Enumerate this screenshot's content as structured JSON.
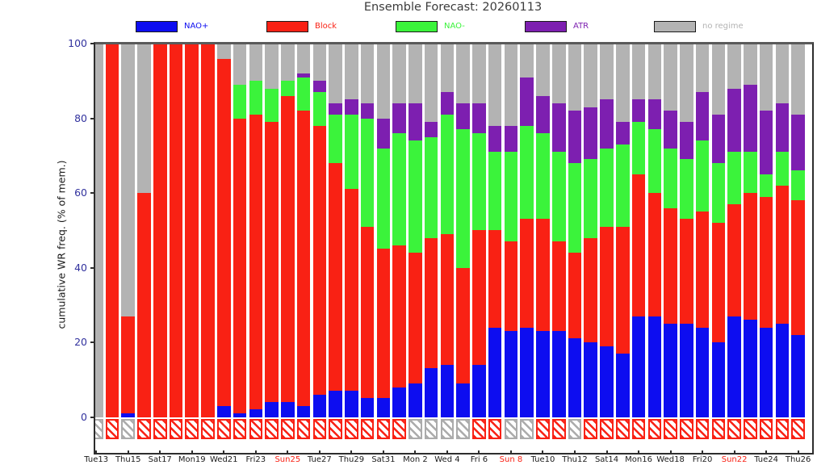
{
  "title": "Ensemble Forecast: 20260113",
  "legend": {
    "items": [
      {
        "label": "NAO+",
        "color": "#0d0df0"
      },
      {
        "label": "Block",
        "color": "#f92114"
      },
      {
        "label": "NAO-",
        "color": "#3bf33b"
      },
      {
        "label": "ATR",
        "color": "#7d1fb0"
      },
      {
        "label": "no regime",
        "color": "#b3b3b3"
      }
    ]
  },
  "y_axis": {
    "label": "cumulative WR freq. (% of mem.)",
    "ticks": [
      100,
      80,
      60,
      40,
      20,
      0
    ],
    "tick_color": "#32329e"
  },
  "x_axis": {
    "sunday_color": "#f92114",
    "tick_labels": [
      {
        "text": "Tue13",
        "sunday": false
      },
      {
        "text": "Thu15",
        "sunday": false
      },
      {
        "text": "Sat17",
        "sunday": false
      },
      {
        "text": "Mon19",
        "sunday": false
      },
      {
        "text": "Wed21",
        "sunday": false
      },
      {
        "text": "Fri23",
        "sunday": false
      },
      {
        "text": "Sun25",
        "sunday": true
      },
      {
        "text": "Tue27",
        "sunday": false
      },
      {
        "text": "Thu29",
        "sunday": false
      },
      {
        "text": "Sat31",
        "sunday": false
      },
      {
        "text": "Mon 2",
        "sunday": false
      },
      {
        "text": "Wed 4",
        "sunday": false
      },
      {
        "text": "Fri 6",
        "sunday": false
      },
      {
        "text": "Sun 8",
        "sunday": true
      },
      {
        "text": "Tue10",
        "sunday": false
      },
      {
        "text": "Thu12",
        "sunday": false
      },
      {
        "text": "Sat14",
        "sunday": false
      },
      {
        "text": "Mon16",
        "sunday": false
      },
      {
        "text": "Wed18",
        "sunday": false
      },
      {
        "text": "Fri20",
        "sunday": false
      },
      {
        "text": "Sun22",
        "sunday": true
      },
      {
        "text": "Tue24",
        "sunday": false
      },
      {
        "text": "Thu26",
        "sunday": false
      }
    ]
  },
  "chart_data": {
    "type": "bar",
    "stacked": true,
    "title": "Ensemble Forecast: 20260113",
    "ylabel": "cumulative WR freq. (% of mem.)",
    "ylim": [
      0,
      100
    ],
    "grid": false,
    "legend_position": "top",
    "categories": [
      "Tue13",
      "Wed14",
      "Thu15",
      "Fri16",
      "Sat17",
      "Sun18",
      "Mon19",
      "Tue20",
      "Wed21",
      "Thu22",
      "Fri23",
      "Sat24",
      "Sun25",
      "Mon26",
      "Tue27",
      "Wed28",
      "Thu29",
      "Fri30",
      "Sat31",
      "Sun 1",
      "Mon 2",
      "Tue 3",
      "Wed 4",
      "Thu 5",
      "Fri 6",
      "Sat 7",
      "Sun 8",
      "Mon 9",
      "Tue10",
      "Wed11",
      "Thu12",
      "Fri13",
      "Sat14",
      "Sun15",
      "Mon16",
      "Tue17",
      "Wed18",
      "Thu19",
      "Fri20",
      "Sat21",
      "Sun22",
      "Mon23",
      "Tue24",
      "Wed25",
      "Thu26"
    ],
    "series": [
      {
        "name": "NAO+",
        "color": "#0d0df0",
        "values": [
          0,
          0,
          1,
          0,
          0,
          0,
          0,
          0,
          3,
          1,
          2,
          4,
          4,
          3,
          6,
          7,
          7,
          5,
          5,
          8,
          9,
          13,
          14,
          9,
          14,
          24,
          23,
          24,
          23,
          23,
          21,
          20,
          19,
          17,
          27,
          27,
          25,
          25,
          24,
          20,
          27,
          26,
          24,
          25,
          22
        ]
      },
      {
        "name": "Block",
        "color": "#f92114",
        "values": [
          0,
          100,
          26,
          60,
          100,
          100,
          100,
          100,
          93,
          79,
          79,
          75,
          82,
          79,
          72,
          61,
          54,
          46,
          40,
          38,
          35,
          35,
          35,
          31,
          36,
          26,
          24,
          29,
          30,
          24,
          23,
          28,
          32,
          34,
          38,
          33,
          31,
          28,
          31,
          32,
          30,
          34,
          35,
          37,
          36
        ]
      },
      {
        "name": "NAO-",
        "color": "#3bf33b",
        "values": [
          0,
          0,
          0,
          0,
          0,
          0,
          0,
          0,
          0,
          9,
          9,
          9,
          4,
          9,
          9,
          13,
          20,
          29,
          27,
          30,
          30,
          27,
          32,
          37,
          26,
          21,
          24,
          25,
          23,
          24,
          24,
          21,
          21,
          22,
          14,
          17,
          16,
          16,
          19,
          16,
          14,
          11,
          6,
          9,
          8
        ]
      },
      {
        "name": "ATR",
        "color": "#7d1fb0",
        "values": [
          0,
          0,
          0,
          0,
          0,
          0,
          0,
          0,
          0,
          0,
          0,
          0,
          0,
          1,
          3,
          3,
          4,
          4,
          8,
          8,
          10,
          4,
          6,
          7,
          8,
          7,
          7,
          13,
          10,
          13,
          14,
          14,
          13,
          6,
          6,
          8,
          10,
          10,
          13,
          13,
          17,
          18,
          17,
          13,
          15
        ]
      },
      {
        "name": "no regime",
        "color": "#b3b3b3",
        "values": [
          100,
          0,
          73,
          40,
          0,
          0,
          0,
          0,
          4,
          11,
          10,
          12,
          10,
          8,
          10,
          16,
          15,
          16,
          20,
          16,
          16,
          21,
          13,
          16,
          16,
          22,
          22,
          9,
          14,
          16,
          18,
          17,
          15,
          21,
          15,
          15,
          18,
          21,
          13,
          19,
          12,
          11,
          18,
          16,
          19
        ]
      }
    ],
    "dominant_regime_row": {
      "description": "hatched boxes below the zero line, one per day",
      "values": [
        "gray",
        "red",
        "gray",
        "red",
        "red",
        "red",
        "red",
        "red",
        "red",
        "red",
        "red",
        "red",
        "red",
        "red",
        "red",
        "red",
        "red",
        "red",
        "red",
        "red",
        "gray",
        "gray",
        "gray",
        "gray",
        "red",
        "red",
        "gray",
        "gray",
        "red",
        "red",
        "gray",
        "red",
        "red",
        "red",
        "red",
        "red",
        "red",
        "red",
        "red",
        "red",
        "red",
        "red",
        "red",
        "red",
        "red"
      ]
    }
  }
}
